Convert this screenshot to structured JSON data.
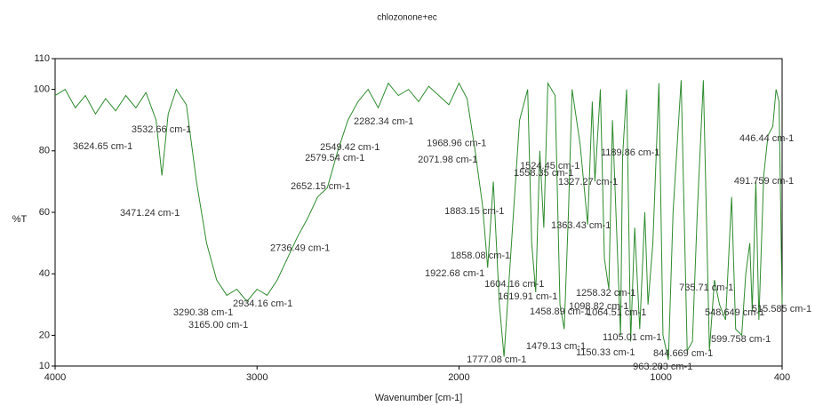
{
  "chart_data": {
    "type": "line",
    "title": "chlozonone+ec",
    "x_label": "Wavenumber [cm-1]",
    "y_label": "%T",
    "xlim": [
      4000,
      400
    ],
    "ylim": [
      10,
      110
    ],
    "xticks": [
      4000,
      3000,
      2000,
      1000,
      400
    ],
    "yticks": [
      10,
      20,
      40,
      60,
      80,
      100,
      110
    ],
    "grid": false,
    "series": [
      {
        "name": "chlozonone+ec",
        "color": "#2e8b2e",
        "x": [
          4000,
          3950,
          3900,
          3850,
          3800,
          3750,
          3700,
          3650,
          3600,
          3550,
          3500,
          3471,
          3440,
          3400,
          3350,
          3300,
          3250,
          3200,
          3150,
          3100,
          3050,
          3000,
          2950,
          2900,
          2850,
          2800,
          2750,
          2700,
          2652,
          2600,
          2550,
          2500,
          2450,
          2400,
          2350,
          2300,
          2250,
          2200,
          2150,
          2100,
          2050,
          2000,
          1960,
          1920,
          1883,
          1858,
          1830,
          1800,
          1777,
          1750,
          1700,
          1660,
          1640,
          1620,
          1600,
          1580,
          1560,
          1524,
          1500,
          1479,
          1458,
          1440,
          1400,
          1363,
          1340,
          1327,
          1300,
          1280,
          1258,
          1240,
          1200,
          1190,
          1170,
          1150,
          1130,
          1105,
          1080,
          1064,
          1040,
          1010,
          990,
          963,
          940,
          900,
          870,
          844,
          820,
          790,
          760,
          735,
          710,
          680,
          650,
          630,
          600,
          580,
          560,
          548,
          530,
          515,
          491,
          470,
          446,
          430,
          415,
          400
        ],
        "values": [
          98,
          100,
          94,
          98,
          92,
          97,
          93,
          98,
          94,
          99,
          90,
          72,
          92,
          100,
          95,
          70,
          50,
          38,
          33,
          35,
          31,
          35,
          33,
          38,
          45,
          52,
          58,
          65,
          68,
          80,
          90,
          96,
          100,
          94,
          102,
          98,
          100,
          96,
          101,
          98,
          95,
          102,
          97,
          80,
          62,
          42,
          70,
          30,
          13,
          40,
          90,
          100,
          50,
          34,
          80,
          55,
          102,
          98,
          30,
          22,
          60,
          100,
          82,
          56,
          96,
          70,
          100,
          45,
          35,
          90,
          20,
          78,
          100,
          18,
          55,
          22,
          60,
          30,
          50,
          102,
          20,
          12,
          60,
          103,
          15,
          18,
          60,
          103,
          15,
          38,
          30,
          25,
          65,
          22,
          20,
          40,
          50,
          28,
          70,
          25,
          72,
          85,
          88,
          100,
          96,
          30
        ]
      }
    ],
    "annotations": [
      {
        "text": "3624.65 cm-1",
        "x": 3912,
        "y": 81.4
      },
      {
        "text": "3532.66 cm-1",
        "x": 3622,
        "y": 86.9
      },
      {
        "text": "3471.24 cm-1",
        "x": 3679,
        "y": 59.7
      },
      {
        "text": "3290.38 cm-1",
        "x": 3415,
        "y": 27.3
      },
      {
        "text": "3165.00 cm-1",
        "x": 3340,
        "y": 23.3
      },
      {
        "text": "2934.16 cm-1",
        "x": 3120,
        "y": 30.2
      },
      {
        "text": "2736.49 cm-1",
        "x": 2935,
        "y": 48.2
      },
      {
        "text": "2652.15 cm-1",
        "x": 2834,
        "y": 68.4
      },
      {
        "text": "2579.54 cm-1",
        "x": 2763,
        "y": 77.6
      },
      {
        "text": "2549.42 cm-1",
        "x": 2688,
        "y": 81.1
      },
      {
        "text": "2282.34 cm-1",
        "x": 2521,
        "y": 89.5
      },
      {
        "text": "1968.96 cm-1",
        "x": 2160,
        "y": 82.3
      },
      {
        "text": "2071.98 cm-1",
        "x": 2204,
        "y": 77
      },
      {
        "text": "1883.15 cm-1",
        "x": 2072,
        "y": 60.3
      },
      {
        "text": "1858.08 cm-1",
        "x": 2042,
        "y": 45.8
      },
      {
        "text": "1922.68 cm-1",
        "x": 2169,
        "y": 40.1
      },
      {
        "text": "1604.16 cm-1",
        "x": 1874,
        "y": 36.6
      },
      {
        "text": "1619.91 cm-1",
        "x": 1808,
        "y": 32.5
      },
      {
        "text": "1777.08 cm-1",
        "x": 1962,
        "y": 12
      },
      {
        "text": "1479.13 cm-1",
        "x": 1668,
        "y": 16.4
      },
      {
        "text": "1458.89 cm-1",
        "x": 1650,
        "y": 27.6
      },
      {
        "text": "1524.45 cm-1",
        "x": 1698,
        "y": 75
      },
      {
        "text": "1558.35 cm-1",
        "x": 1729,
        "y": 72.7
      },
      {
        "text": "1363.43 cm-1",
        "x": 1544,
        "y": 55.7
      },
      {
        "text": "1327.27 cm-1",
        "x": 1509,
        "y": 69.8
      },
      {
        "text": "1189.86 cm-1",
        "x": 1298,
        "y": 79.4
      },
      {
        "text": "1258.32 cm-1",
        "x": 1421,
        "y": 33.7
      },
      {
        "text": "1098.82 cm-1",
        "x": 1456,
        "y": 29.4
      },
      {
        "text": "1064.51 cm-1",
        "x": 1368,
        "y": 27.3
      },
      {
        "text": "1150.33 cm-1",
        "x": 1421,
        "y": 14.3
      },
      {
        "text": "1105.01 cm-1",
        "x": 1289,
        "y": 19.2
      },
      {
        "text": "963.283 cm-1",
        "x": 1139,
        "y": 9.7
      },
      {
        "text": "844.669 cm-1",
        "x": 1038,
        "y": 14
      },
      {
        "text": "735.71 cm-1",
        "x": 910,
        "y": 35.4
      },
      {
        "text": "548.649 cm-1",
        "x": 783,
        "y": 27.3
      },
      {
        "text": "599.758 cm-1",
        "x": 752,
        "y": 18.7
      },
      {
        "text": "515.585 cm-1",
        "x": 550,
        "y": 28.5
      },
      {
        "text": "491.759 cm-1",
        "x": 638,
        "y": 70.1
      },
      {
        "text": "446.44 cm-1",
        "x": 611,
        "y": 84
      }
    ]
  }
}
